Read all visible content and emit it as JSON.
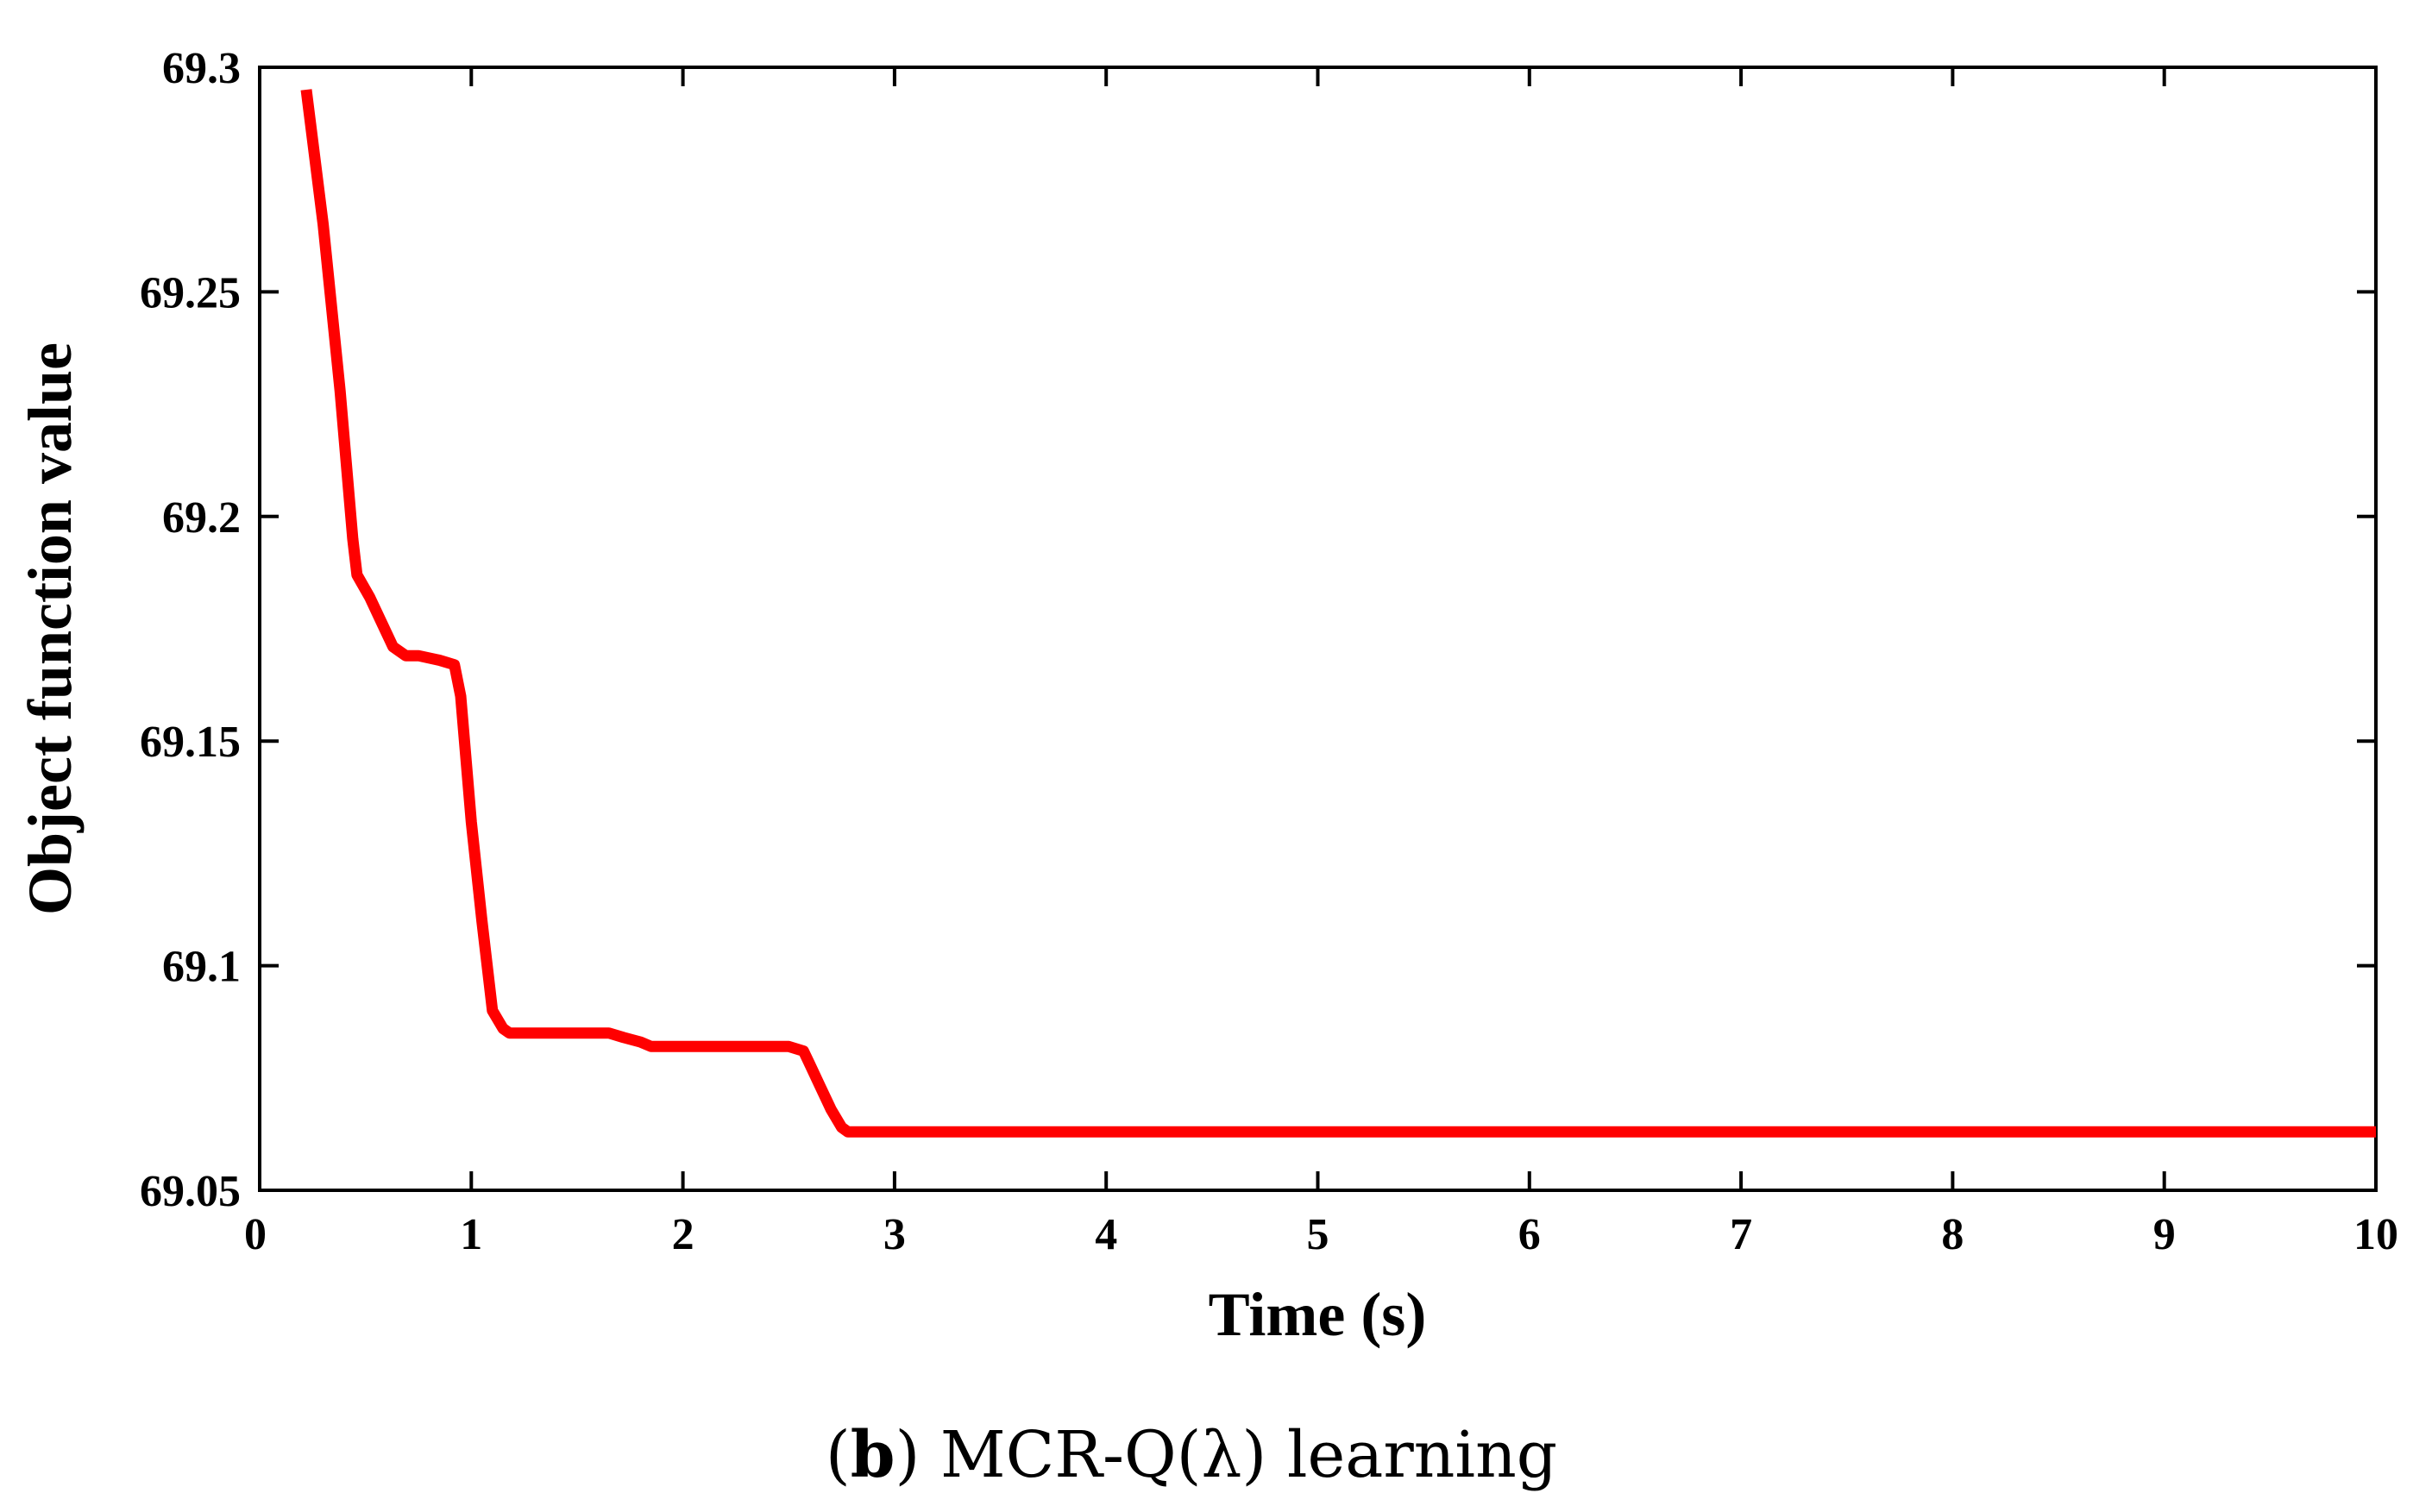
{
  "chart_data": {
    "type": "line",
    "title": "",
    "xlabel": "Time (s)",
    "ylabel": "Object function value",
    "xlim": [
      0,
      10
    ],
    "ylim": [
      69.05,
      69.3
    ],
    "xticks": [
      0,
      1,
      2,
      3,
      4,
      5,
      6,
      7,
      8,
      9,
      10
    ],
    "xtick_labels": [
      "0",
      "1",
      "2",
      "3",
      "4",
      "5",
      "6",
      "7",
      "8",
      "9",
      "10"
    ],
    "yticks": [
      69.05,
      69.1,
      69.15,
      69.2,
      69.25,
      69.3
    ],
    "ytick_labels": [
      "69.05",
      "69.1",
      "69.15",
      "69.2",
      "69.25",
      "69.3"
    ],
    "grid": false,
    "legend": "none",
    "series": [
      {
        "color": "#ff0000",
        "x": [
          0.22,
          0.3,
          0.38,
          0.44,
          0.46,
          0.52,
          0.58,
          0.63,
          0.69,
          0.75,
          0.85,
          0.92,
          0.95,
          1.0,
          1.05,
          1.1,
          1.15,
          1.18,
          1.25,
          1.4,
          1.55,
          1.65,
          1.72,
          1.8,
          1.85,
          1.95,
          2.1,
          2.3,
          2.5,
          2.57,
          2.6,
          2.65,
          2.7,
          2.75,
          2.78,
          2.85,
          3.0,
          4.0,
          5.0,
          6.0,
          7.0,
          8.0,
          9.0,
          10.0
        ],
        "y": [
          69.295,
          69.265,
          69.228,
          69.195,
          69.187,
          69.182,
          69.176,
          69.171,
          69.169,
          69.169,
          69.168,
          69.167,
          69.16,
          69.132,
          69.11,
          69.09,
          69.086,
          69.085,
          69.085,
          69.085,
          69.085,
          69.085,
          69.084,
          69.083,
          69.082,
          69.082,
          69.082,
          69.082,
          69.082,
          69.081,
          69.078,
          69.073,
          69.068,
          69.064,
          69.063,
          69.063,
          69.063,
          69.063,
          69.063,
          69.063,
          69.063,
          69.063,
          69.063,
          69.063
        ]
      }
    ]
  },
  "caption": {
    "prefix_open": "(",
    "prefix_bold": "b",
    "prefix_close": ")",
    "text": " MCR-Q(λ)  learning"
  }
}
